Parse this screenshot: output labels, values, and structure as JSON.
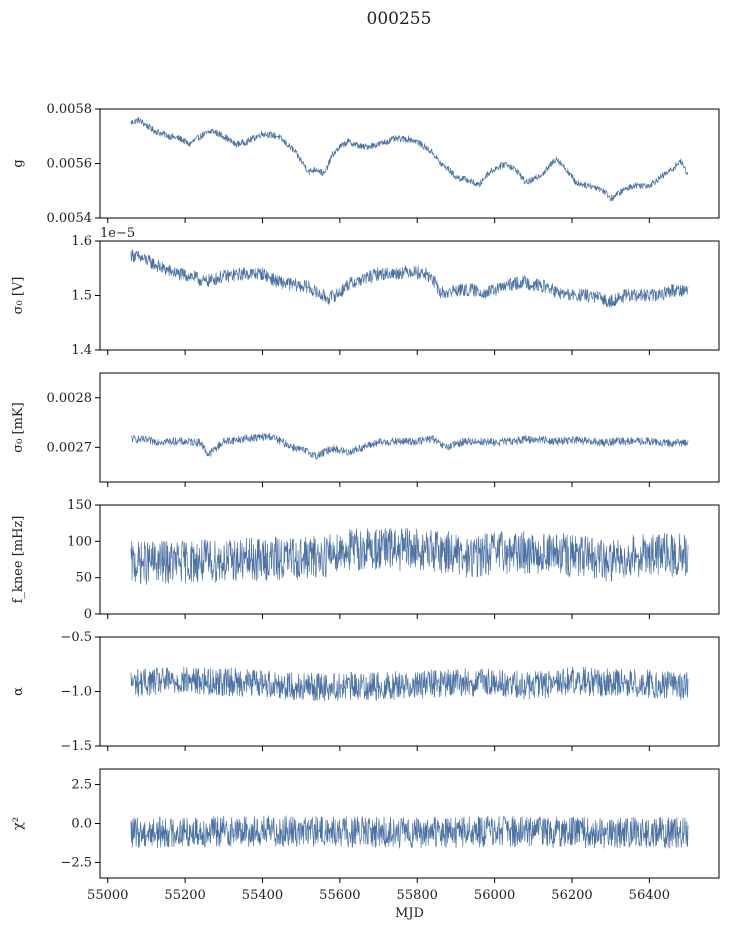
{
  "figure": {
    "title": "000255",
    "colors": {
      "series": "#4c72a4",
      "axes": "#000000",
      "background": "#ffffff"
    }
  },
  "chart_data": [
    {
      "type": "line",
      "ylabel": "g",
      "ylim": [
        0.0054,
        0.0058
      ],
      "yticks": [
        0.0054,
        0.0056,
        0.0058
      ],
      "ytick_labels": [
        "0.0054",
        "0.0056",
        "0.0058"
      ],
      "xlim": [
        54980,
        56580
      ],
      "x_tick_labels_visible": false,
      "noise": 1.2e-05,
      "series": [
        {
          "x": [
            55060,
            55080,
            55120,
            55160,
            55190,
            55210,
            55240,
            55270,
            55300,
            55330,
            55360,
            55400,
            55440,
            55480,
            55520,
            55540,
            55560,
            55580,
            55600,
            55620,
            55660,
            55700,
            55740,
            55780,
            55800,
            55820,
            55840,
            55860,
            55880,
            55900,
            55930,
            55960,
            55980,
            56000,
            56030,
            56060,
            56080,
            56100,
            56130,
            56160,
            56190,
            56210,
            56240,
            56270,
            56290,
            56300,
            56330,
            56360,
            56400,
            56430,
            56460,
            56480,
            56500
          ],
          "y": [
            0.00575,
            0.00576,
            0.00572,
            0.0057,
            0.00569,
            0.00567,
            0.0057,
            0.00572,
            0.0057,
            0.00567,
            0.00568,
            0.00571,
            0.0057,
            0.00565,
            0.00557,
            0.00558,
            0.00556,
            0.00563,
            0.00566,
            0.00568,
            0.00566,
            0.00567,
            0.00569,
            0.00569,
            0.00568,
            0.00566,
            0.00564,
            0.0056,
            0.00558,
            0.00555,
            0.00554,
            0.00552,
            0.00556,
            0.00558,
            0.0056,
            0.00557,
            0.00553,
            0.00554,
            0.00557,
            0.00562,
            0.00557,
            0.00553,
            0.00552,
            0.00551,
            0.00549,
            0.00547,
            0.0055,
            0.00552,
            0.00552,
            0.00555,
            0.00558,
            0.00561,
            0.00556
          ]
        }
      ]
    },
    {
      "type": "line",
      "ylabel": "σ₀ [V]",
      "ylim": [
        1.4e-05,
        1.6e-05
      ],
      "yticks": [
        1.4e-05,
        1.5e-05,
        1.6e-05
      ],
      "ytick_labels": [
        "1.4",
        "1.5",
        "1.6"
      ],
      "offset_text": "1e−5",
      "xlim": [
        54980,
        56580
      ],
      "x_tick_labels_visible": false,
      "noise": 1.2e-07,
      "series": [
        {
          "x": [
            55060,
            55100,
            55140,
            55180,
            55220,
            55250,
            55300,
            55350,
            55400,
            55440,
            55480,
            55520,
            55540,
            55570,
            55600,
            55620,
            55660,
            55700,
            55740,
            55780,
            55820,
            55840,
            55860,
            55880,
            55900,
            55940,
            55980,
            56000,
            56040,
            56080,
            56100,
            56140,
            56160,
            56200,
            56240,
            56270,
            56290,
            56300,
            56340,
            56380,
            56420,
            56460,
            56500
          ],
          "y": [
            1.575e-05,
            1.565e-05,
            1.55e-05,
            1.54e-05,
            1.535e-05,
            1.525e-05,
            1.535e-05,
            1.54e-05,
            1.54e-05,
            1.525e-05,
            1.52e-05,
            1.515e-05,
            1.505e-05,
            1.495e-05,
            1.505e-05,
            1.52e-05,
            1.53e-05,
            1.54e-05,
            1.54e-05,
            1.545e-05,
            1.54e-05,
            1.53e-05,
            1.505e-05,
            1.505e-05,
            1.51e-05,
            1.51e-05,
            1.505e-05,
            1.51e-05,
            1.52e-05,
            1.525e-05,
            1.52e-05,
            1.515e-05,
            1.505e-05,
            1.5e-05,
            1.5e-05,
            1.495e-05,
            1.49e-05,
            1.49e-05,
            1.5e-05,
            1.5e-05,
            1.5e-05,
            1.51e-05,
            1.51e-05
          ]
        }
      ]
    },
    {
      "type": "line",
      "ylabel": "σ₀ [mK]",
      "ylim": [
        0.00263,
        0.00285
      ],
      "yticks": [
        0.0027,
        0.0028
      ],
      "ytick_labels": [
        "0.0027",
        "0.0028"
      ],
      "xlim": [
        54980,
        56580
      ],
      "x_tick_labels_visible": false,
      "noise": 8e-06,
      "series": [
        {
          "x": [
            55060,
            55120,
            55180,
            55240,
            55260,
            55300,
            55360,
            55420,
            55480,
            55520,
            55540,
            55580,
            55620,
            55660,
            55700,
            55760,
            55800,
            55840,
            55860,
            55880,
            55920,
            55960,
            56000,
            56040,
            56080,
            56120,
            56160,
            56200,
            56240,
            56280,
            56320,
            56360,
            56400,
            56440,
            56500
          ],
          "y": [
            0.002718,
            0.002712,
            0.002712,
            0.00271,
            0.002685,
            0.002712,
            0.002718,
            0.002722,
            0.0027,
            0.00269,
            0.002682,
            0.002698,
            0.00269,
            0.0027,
            0.00271,
            0.002712,
            0.002712,
            0.002718,
            0.002705,
            0.0027,
            0.002712,
            0.002712,
            0.00271,
            0.002712,
            0.002716,
            0.002716,
            0.002712,
            0.002715,
            0.002712,
            0.00271,
            0.002712,
            0.002712,
            0.002712,
            0.002708,
            0.00271
          ]
        }
      ]
    },
    {
      "type": "line",
      "ylabel": "f_knee [mHz]",
      "ylim": [
        0,
        150
      ],
      "yticks": [
        0,
        50,
        100,
        150
      ],
      "ytick_labels": [
        "0",
        "50",
        "100",
        "150"
      ],
      "xlim": [
        54980,
        56580
      ],
      "x_tick_labels_visible": false,
      "noise": 30,
      "series": [
        {
          "x": [
            55060,
            55200,
            55400,
            55550,
            55600,
            55700,
            55800,
            55900,
            55910,
            56000,
            56100,
            56200,
            56270,
            56300,
            56340,
            56420,
            56500
          ],
          "y": [
            70,
            72,
            75,
            78,
            88,
            90,
            88,
            85,
            75,
            85,
            85,
            80,
            75,
            72,
            80,
            82,
            80
          ]
        }
      ]
    },
    {
      "type": "line",
      "ylabel": "α",
      "ylim": [
        -1.5,
        -0.5
      ],
      "yticks": [
        -1.5,
        -1.0,
        -0.5
      ],
      "ytick_labels": [
        "−1.5",
        "−1.0",
        "−0.5"
      ],
      "xlim": [
        54980,
        56580
      ],
      "x_tick_labels_visible": false,
      "noise": 0.13,
      "series": [
        {
          "x": [
            55060,
            55200,
            55400,
            55500,
            55700,
            55900,
            56000,
            56100,
            56200,
            56300,
            56400,
            56500
          ],
          "y": [
            -0.92,
            -0.9,
            -0.92,
            -0.96,
            -0.95,
            -0.92,
            -0.92,
            -0.95,
            -0.9,
            -0.92,
            -0.93,
            -0.95
          ]
        }
      ]
    },
    {
      "type": "line",
      "ylabel": "χ²",
      "xlabel": "MJD",
      "ylim": [
        -3.5,
        3.5
      ],
      "yticks": [
        -2.5,
        0.0,
        2.5
      ],
      "ytick_labels": [
        "−2.5",
        "0.0",
        "2.5"
      ],
      "xlim": [
        54980,
        56580
      ],
      "xticks": [
        55000,
        55200,
        55400,
        55600,
        55800,
        56000,
        56200,
        56400
      ],
      "xtick_labels": [
        "55000",
        "55200",
        "55400",
        "55600",
        "55800",
        "56000",
        "56200",
        "56400"
      ],
      "x_tick_labels_visible": true,
      "noise": 1.0,
      "series": [
        {
          "x": [
            55060,
            55300,
            55500,
            55800,
            56000,
            56300,
            56500
          ],
          "y": [
            -0.6,
            -0.5,
            -0.5,
            -0.6,
            -0.5,
            -0.6,
            -0.6
          ]
        }
      ]
    }
  ]
}
